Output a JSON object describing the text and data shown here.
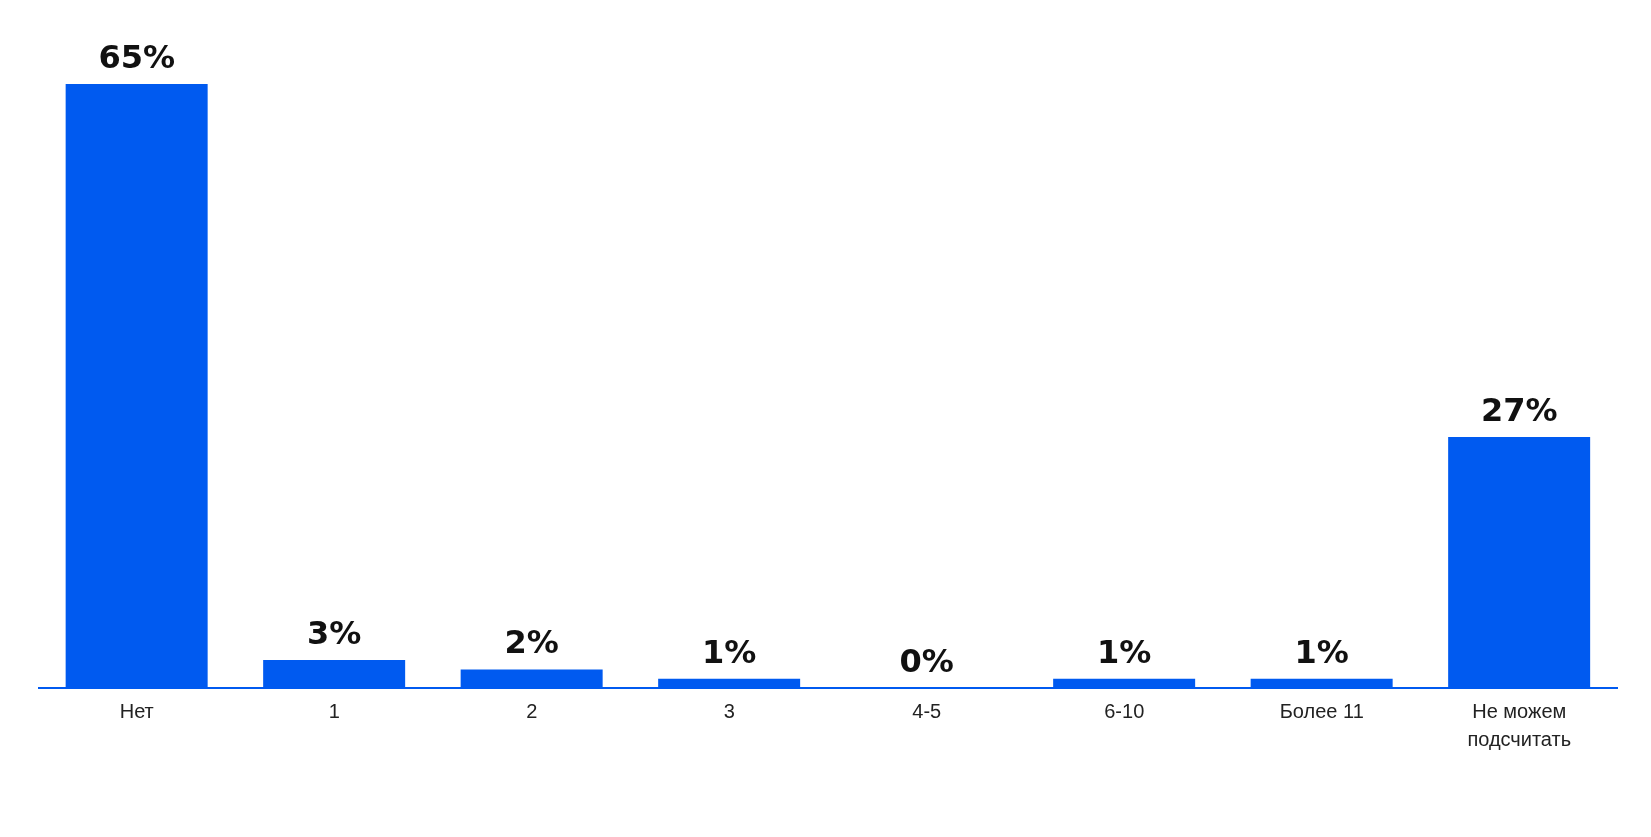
{
  "chart_data": {
    "type": "bar",
    "categories": [
      "Нет",
      "1",
      "2",
      "3",
      "4-5",
      "6-10",
      "Более 11",
      "Не можем подсчитать"
    ],
    "values": [
      65,
      3,
      2,
      1,
      0,
      1,
      1,
      27
    ],
    "value_labels": [
      "65%",
      "3%",
      "2%",
      "1%",
      "0%",
      "1%",
      "1%",
      "27%"
    ],
    "color": "#005af0",
    "grid": false
  }
}
